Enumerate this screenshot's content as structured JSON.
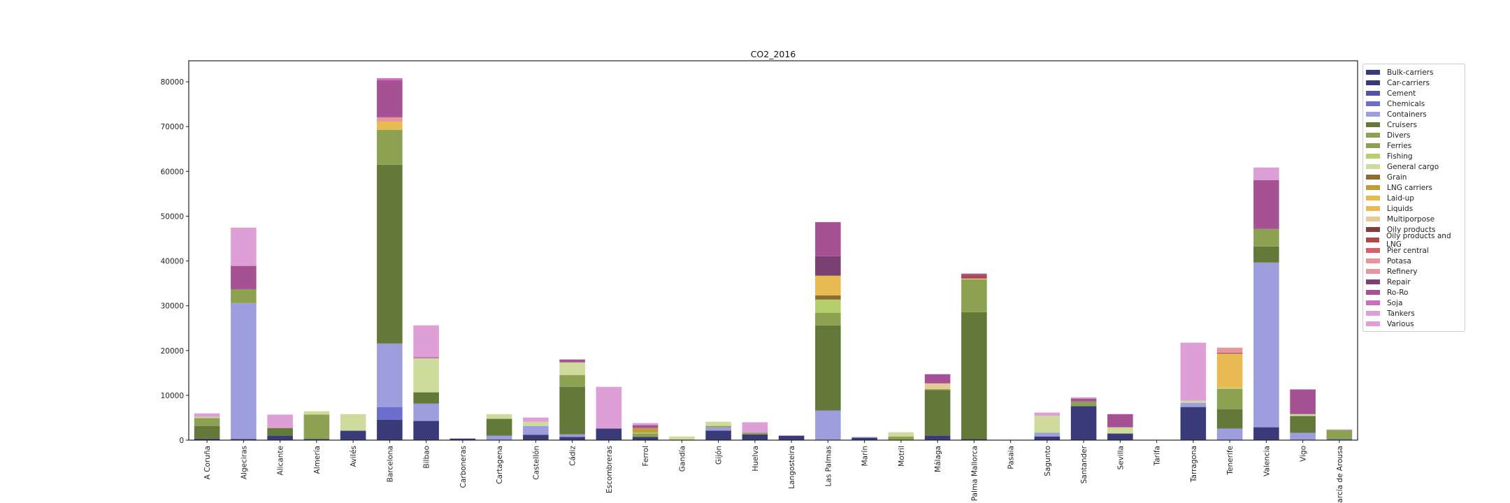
{
  "chart_data": {
    "type": "bar",
    "stacked": true,
    "title": "CO2_2016",
    "xlabel": "",
    "ylabel": "",
    "ylim": [
      0,
      84700
    ],
    "yticks": [
      0,
      10000,
      20000,
      30000,
      40000,
      50000,
      60000,
      70000,
      80000
    ],
    "legend_position": "right-outside",
    "categories": [
      "A Coruña",
      "Algeciras",
      "Alicante",
      "Almería",
      "Avilés",
      "Barcelona",
      "Bilbao",
      "Carboneras",
      "Cartagena",
      "Castellón",
      "Cádiz",
      "Escombreras",
      "Ferrol",
      "Gandía",
      "Gijón",
      "Huelva",
      "Langosteira",
      "Las Palmas",
      "Marín",
      "Motril",
      "Málaga",
      "Palma Mallorca",
      "Pasaia",
      "Sagunto",
      "Santander",
      "Sevilla",
      "Tarifa",
      "Tarragona",
      "Tenerife",
      "Valencia",
      "Vigo",
      "Vilagarcía de Arousa"
    ],
    "series": [
      {
        "name": "Bulk-carriers",
        "color": "#393b79",
        "values": [
          350,
          230,
          1000,
          230,
          2100,
          4570,
          4280,
          350,
          0,
          1170,
          700,
          2580,
          700,
          0,
          2110,
          1290,
          1000,
          0,
          530,
          0,
          1000,
          230,
          0,
          820,
          7570,
          1470,
          0,
          7390,
          0,
          2870,
          0,
          0
        ]
      },
      {
        "name": "Car-carriers",
        "color": "#393b79",
        "values": [
          0,
          0,
          0,
          0,
          0,
          0,
          0,
          0,
          0,
          0,
          0,
          0,
          0,
          0,
          0,
          0,
          0,
          0,
          0,
          0,
          0,
          0,
          0,
          0,
          0,
          0,
          0,
          0,
          0,
          0,
          0,
          0
        ]
      },
      {
        "name": "Cement",
        "color": "#5254a3",
        "values": [
          0,
          0,
          0,
          0,
          0,
          0,
          0,
          0,
          0,
          0,
          0,
          0,
          0,
          0,
          0,
          0,
          0,
          0,
          0,
          0,
          0,
          0,
          0,
          0,
          0,
          0,
          0,
          0,
          0,
          0,
          0,
          0
        ]
      },
      {
        "name": "Chemicals",
        "color": "#6b6ecf",
        "values": [
          0,
          0,
          0,
          0,
          0,
          2820,
          0,
          0,
          0,
          0,
          0,
          0,
          0,
          0,
          0,
          0,
          0,
          0,
          0,
          0,
          0,
          0,
          0,
          0,
          0,
          0,
          0,
          0,
          0,
          0,
          0,
          230
        ]
      },
      {
        "name": "Containers",
        "color": "#9c9ede",
        "values": [
          0,
          30370,
          0,
          0,
          0,
          14190,
          3870,
          0,
          1000,
          2000,
          590,
          0,
          0,
          0,
          760,
          0,
          0,
          6630,
          170,
          0,
          0,
          0,
          0,
          820,
          0,
          0,
          0,
          940,
          2580,
          36780,
          1640,
          0
        ]
      },
      {
        "name": "Cruisers",
        "color": "#637939",
        "values": [
          2820,
          0,
          1700,
          0,
          0,
          39890,
          2520,
          0,
          3750,
          0,
          10610,
          0,
          0,
          0,
          0,
          0,
          0,
          19000,
          0,
          0,
          10200,
          28330,
          0,
          0,
          0,
          0,
          0,
          0,
          4340,
          3580,
          3760,
          0
        ]
      },
      {
        "name": "Divers",
        "color": "#8ca252",
        "values": [
          0,
          0,
          0,
          0,
          0,
          0,
          0,
          0,
          0,
          0,
          0,
          0,
          0,
          0,
          0,
          0,
          0,
          0,
          0,
          0,
          0,
          0,
          0,
          0,
          0,
          0,
          0,
          0,
          0,
          0,
          0,
          0
        ]
      },
      {
        "name": "Ferries",
        "color": "#8ca252",
        "values": [
          1760,
          3100,
          0,
          5470,
          0,
          7800,
          0,
          0,
          0,
          0,
          2650,
          0,
          820,
          0,
          300,
          350,
          0,
          2820,
          0,
          820,
          180,
          7340,
          0,
          0,
          1050,
          0,
          0,
          0,
          4580,
          3930,
          0,
          2060
        ]
      },
      {
        "name": "Fishing",
        "color": "#b5cf6b",
        "values": [
          0,
          0,
          0,
          0,
          0,
          0,
          0,
          0,
          0,
          0,
          0,
          0,
          0,
          0,
          0,
          0,
          0,
          2930,
          0,
          0,
          0,
          0,
          0,
          0,
          0,
          0,
          0,
          0,
          0,
          0,
          0,
          0
        ]
      },
      {
        "name": "General cargo",
        "color": "#cedb9c",
        "values": [
          290,
          0,
          0,
          750,
          3700,
          0,
          7630,
          0,
          1050,
          940,
          2810,
          0,
          120,
          820,
          940,
          0,
          0,
          0,
          0,
          940,
          0,
          0,
          0,
          3810,
          0,
          1400,
          0,
          470,
          170,
          0,
          410,
          0
        ]
      },
      {
        "name": "Grain",
        "color": "#8c6d31",
        "values": [
          0,
          0,
          0,
          0,
          0,
          0,
          0,
          0,
          0,
          0,
          0,
          0,
          0,
          0,
          0,
          0,
          0,
          940,
          0,
          0,
          0,
          0,
          0,
          0,
          0,
          0,
          0,
          0,
          0,
          0,
          0,
          0
        ]
      },
      {
        "name": "LNG carriers",
        "color": "#bd9e39",
        "values": [
          0,
          0,
          0,
          0,
          0,
          0,
          0,
          0,
          0,
          0,
          0,
          0,
          1060,
          0,
          0,
          0,
          0,
          0,
          0,
          0,
          0,
          0,
          0,
          0,
          0,
          0,
          0,
          0,
          0,
          0,
          0,
          0
        ]
      },
      {
        "name": "Laid-up",
        "color": "#e7ba52",
        "values": [
          0,
          0,
          0,
          0,
          0,
          0,
          0,
          0,
          0,
          0,
          0,
          0,
          0,
          0,
          0,
          0,
          0,
          4400,
          0,
          0,
          0,
          0,
          0,
          0,
          0,
          0,
          0,
          0,
          7630,
          0,
          0,
          0
        ]
      },
      {
        "name": "Liquids",
        "color": "#e7ba52",
        "values": [
          0,
          0,
          0,
          0,
          0,
          1870,
          0,
          0,
          0,
          0,
          0,
          0,
          0,
          0,
          0,
          0,
          0,
          0,
          0,
          0,
          0,
          0,
          0,
          0,
          0,
          0,
          0,
          0,
          0,
          0,
          0,
          0
        ]
      },
      {
        "name": "Multiporpose",
        "color": "#e7cb94",
        "values": [
          0,
          0,
          0,
          0,
          0,
          0,
          0,
          0,
          0,
          0,
          0,
          0,
          0,
          0,
          0,
          0,
          0,
          0,
          0,
          0,
          1290,
          170,
          0,
          0,
          0,
          0,
          0,
          0,
          0,
          0,
          0,
          0
        ]
      },
      {
        "name": "Oily products",
        "color": "#843c39",
        "values": [
          0,
          0,
          0,
          0,
          0,
          0,
          0,
          0,
          0,
          0,
          0,
          0,
          0,
          0,
          0,
          0,
          0,
          0,
          0,
          0,
          0,
          0,
          0,
          0,
          0,
          0,
          0,
          0,
          170,
          0,
          0,
          0
        ]
      },
      {
        "name": "Oily products and LNG",
        "color": "#ad494a",
        "values": [
          0,
          0,
          0,
          0,
          0,
          0,
          0,
          0,
          0,
          0,
          0,
          0,
          0,
          0,
          0,
          0,
          0,
          0,
          0,
          0,
          0,
          760,
          0,
          0,
          0,
          0,
          0,
          0,
          0,
          0,
          0,
          0
        ]
      },
      {
        "name": "Pier central",
        "color": "#d6616b",
        "values": [
          0,
          0,
          0,
          0,
          0,
          0,
          0,
          0,
          0,
          0,
          0,
          0,
          0,
          0,
          0,
          0,
          0,
          0,
          0,
          0,
          0,
          0,
          0,
          0,
          0,
          0,
          0,
          0,
          0,
          0,
          0,
          0
        ]
      },
      {
        "name": "Potasa",
        "color": "#e7969c",
        "values": [
          0,
          0,
          0,
          0,
          0,
          0,
          0,
          0,
          0,
          0,
          0,
          0,
          0,
          0,
          0,
          0,
          0,
          0,
          0,
          0,
          0,
          0,
          0,
          0,
          0,
          0,
          0,
          0,
          0,
          0,
          0,
          0
        ]
      },
      {
        "name": "Refinery",
        "color": "#e7969c",
        "values": [
          0,
          0,
          0,
          0,
          0,
          940,
          0,
          0,
          0,
          0,
          0,
          0,
          0,
          0,
          0,
          0,
          0,
          0,
          0,
          0,
          0,
          0,
          0,
          0,
          0,
          0,
          0,
          0,
          1180,
          0,
          0,
          0
        ]
      },
      {
        "name": "Repair",
        "color": "#7b4173",
        "values": [
          0,
          0,
          0,
          0,
          0,
          0,
          0,
          0,
          0,
          0,
          0,
          0,
          0,
          0,
          0,
          0,
          0,
          4340,
          0,
          0,
          0,
          0,
          0,
          0,
          0,
          0,
          0,
          0,
          0,
          0,
          0,
          0
        ]
      },
      {
        "name": "Ro-Ro",
        "color": "#a55194",
        "values": [
          0,
          5200,
          0,
          0,
          0,
          8270,
          180,
          0,
          0,
          0,
          640,
          0,
          640,
          0,
          0,
          0,
          0,
          7620,
          0,
          0,
          2050,
          350,
          0,
          0,
          650,
          2940,
          0,
          0,
          0,
          10910,
          5510,
          0
        ]
      },
      {
        "name": "Soja",
        "color": "#ce6dbd",
        "values": [
          0,
          0,
          0,
          0,
          0,
          470,
          0,
          0,
          0,
          0,
          0,
          0,
          0,
          0,
          0,
          0,
          0,
          0,
          0,
          0,
          0,
          0,
          0,
          0,
          0,
          0,
          0,
          0,
          0,
          0,
          0,
          0
        ]
      },
      {
        "name": "Tankers",
        "color": "#de9ed6",
        "values": [
          760,
          8550,
          3000,
          0,
          0,
          0,
          7150,
          0,
          0,
          930,
          0,
          9320,
          470,
          0,
          0,
          2350,
          0,
          0,
          0,
          0,
          0,
          0,
          0,
          710,
          290,
          0,
          0,
          12960,
          0,
          2810,
          0,
          110
        ]
      },
      {
        "name": "Various",
        "color": "#de9ed6",
        "values": [
          0,
          0,
          0,
          0,
          0,
          0,
          0,
          0,
          0,
          0,
          0,
          0,
          0,
          0,
          0,
          0,
          0,
          0,
          0,
          0,
          0,
          0,
          0,
          0,
          0,
          0,
          0,
          0,
          0,
          0,
          0,
          0
        ]
      }
    ]
  }
}
